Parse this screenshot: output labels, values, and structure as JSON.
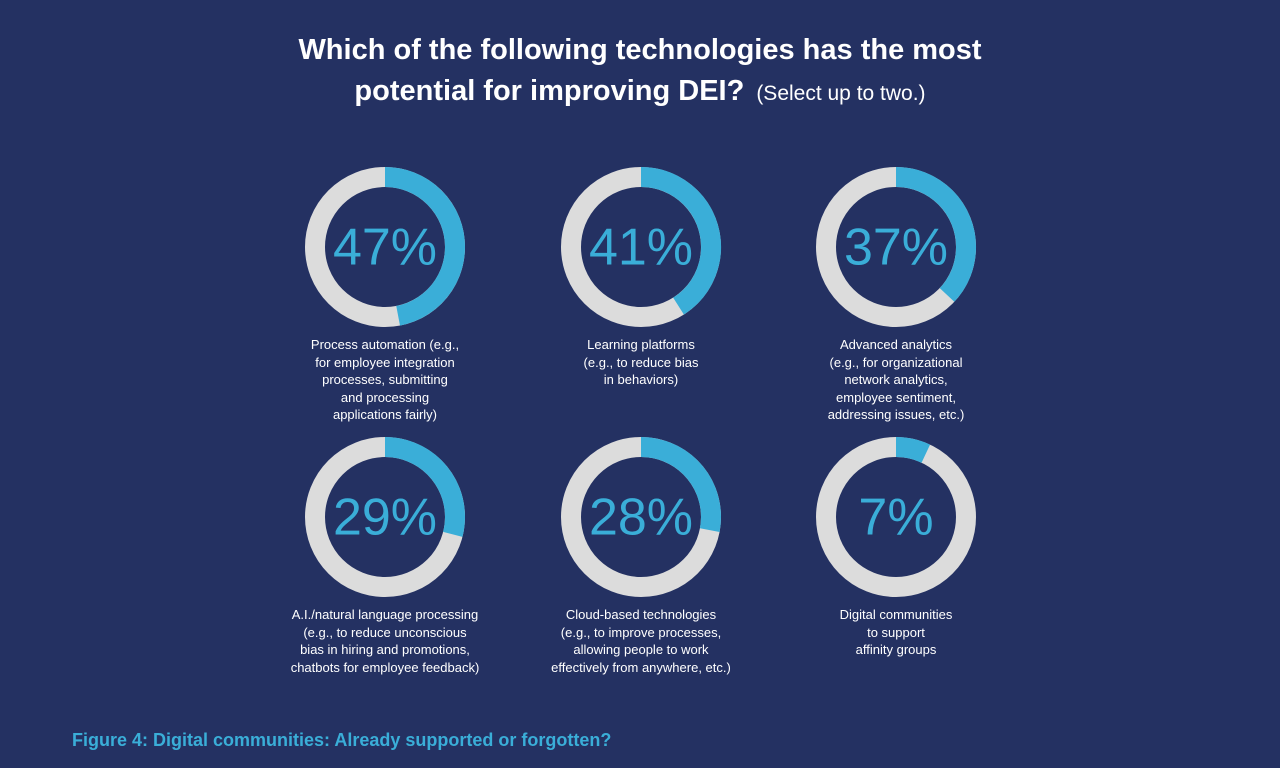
{
  "chart_data": {
    "type": "donut",
    "title": "Which of the following technologies has the most\npotential for improving DEI?",
    "subtitle": "(Select up to two.)",
    "categories": [
      "Process automation (e.g.,\nfor employee integration\nprocesses, submitting\nand processing\napplications fairly)",
      "Learning platforms\n(e.g., to reduce bias\nin behaviors)",
      "Advanced analytics\n(e.g., for organizational\nnetwork analytics,\nemployee sentiment,\naddressing issues, etc.)",
      "A.I./natural language processing\n(e.g., to reduce unconscious\nbias in hiring and promotions,\nchatbots for employee feedback)",
      "Cloud-based technologies\n(e.g., to improve processes,\nallowing people to work\neffectively from anywhere, etc.)",
      "Digital communities\nto support\naffinity groups"
    ],
    "values": [
      47,
      41,
      37,
      29,
      28,
      7
    ],
    "value_labels": [
      "47%",
      "41%",
      "37%",
      "29%",
      "28%",
      "7%"
    ],
    "ylim": [
      0,
      100
    ],
    "color": "#3aaed8",
    "track_color": "#dcdcdc",
    "caption": "Figure 4: Digital communities: Already supported or forgotten?"
  }
}
